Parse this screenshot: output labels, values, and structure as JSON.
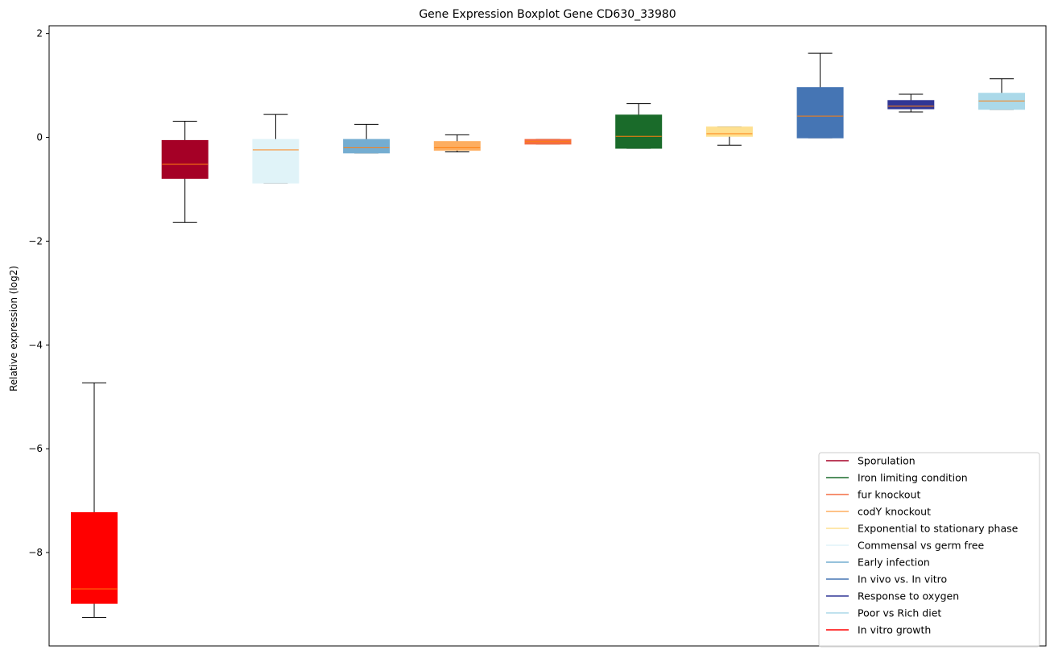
{
  "chart_data": {
    "type": "boxplot",
    "title": "Gene Expression Boxplot Gene CD630_33980",
    "xlabel": "",
    "ylabel": "Relative expression (log2)",
    "ylim": [
      -9.8,
      2.15
    ],
    "yticks": [
      2,
      0,
      -2,
      -4,
      -6,
      -8
    ],
    "ytick_labels": [
      "2",
      "0",
      "−2",
      "−4",
      "−6",
      "−8"
    ],
    "median_color": "#ff7f0e",
    "legend_position": "lower-right",
    "boxes": [
      {
        "name": "In vitro growth",
        "color": "#ff0000",
        "whisker_low": -9.25,
        "q1": -8.98,
        "median": -8.7,
        "q3": -7.23,
        "whisker_high": -4.73
      },
      {
        "name": "Sporulation",
        "color": "#a50026",
        "whisker_low": -1.64,
        "q1": -0.79,
        "median": -0.52,
        "q3": -0.06,
        "whisker_high": 0.31
      },
      {
        "name": "Commensal vs germ free",
        "color": "#e0f3f8",
        "whisker_low": -0.88,
        "q1": -0.88,
        "median": -0.24,
        "q3": -0.04,
        "whisker_high": 0.44
      },
      {
        "name": "Early infection",
        "color": "#74add1",
        "whisker_low": -0.3,
        "q1": -0.3,
        "median": -0.2,
        "q3": -0.04,
        "whisker_high": 0.25
      },
      {
        "name": "codY knockout",
        "color": "#fdae61",
        "whisker_low": -0.28,
        "q1": -0.25,
        "median": -0.2,
        "q3": -0.08,
        "whisker_high": 0.05
      },
      {
        "name": "fur knockout",
        "color": "#f46d43",
        "whisker_low": -0.13,
        "q1": -0.13,
        "median": -0.08,
        "q3": -0.04,
        "whisker_high": -0.04
      },
      {
        "name": "Iron limiting condition",
        "color": "#1a6b2a",
        "whisker_low": -0.21,
        "q1": -0.21,
        "median": 0.02,
        "q3": 0.43,
        "whisker_high": 0.65
      },
      {
        "name": "Exponential to stationary phase",
        "color": "#fee090",
        "whisker_low": -0.15,
        "q1": 0.02,
        "median": 0.07,
        "q3": 0.2,
        "whisker_high": 0.2
      },
      {
        "name": "In vivo vs. In vitro",
        "color": "#4575b4",
        "whisker_low": -0.01,
        "q1": -0.01,
        "median": 0.41,
        "q3": 0.96,
        "whisker_high": 1.62
      },
      {
        "name": "Response to oxygen",
        "color": "#313695",
        "whisker_low": 0.49,
        "q1": 0.55,
        "median": 0.6,
        "q3": 0.71,
        "whisker_high": 0.83
      },
      {
        "name": "Poor vs Rich diet",
        "color": "#abd9e9",
        "whisker_low": 0.54,
        "q1": 0.54,
        "median": 0.7,
        "q3": 0.85,
        "whisker_high": 1.13
      }
    ],
    "legend": [
      {
        "label": "Sporulation",
        "color": "#a50026"
      },
      {
        "label": "Iron limiting condition",
        "color": "#1a6b2a"
      },
      {
        "label": "fur knockout",
        "color": "#f46d43"
      },
      {
        "label": "codY knockout",
        "color": "#fdae61"
      },
      {
        "label": "Exponential to stationary phase",
        "color": "#fee090"
      },
      {
        "label": "Commensal vs germ free",
        "color": "#e0f3f8"
      },
      {
        "label": "Early infection",
        "color": "#74add1"
      },
      {
        "label": "In vivo vs. In vitro",
        "color": "#4575b4"
      },
      {
        "label": "Response to oxygen",
        "color": "#313695"
      },
      {
        "label": "Poor vs Rich diet",
        "color": "#abd9e9"
      },
      {
        "label": "In vitro growth",
        "color": "#ff0000"
      }
    ]
  }
}
